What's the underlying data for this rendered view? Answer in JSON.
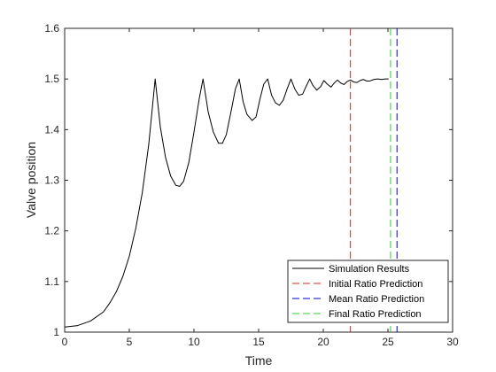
{
  "chart_data": {
    "type": "line",
    "title": "",
    "xlabel": "Time",
    "ylabel": "Valve position",
    "xlim": [
      0,
      30
    ],
    "ylim": [
      1,
      1.6
    ],
    "xticks": [
      0,
      5,
      10,
      15,
      20,
      25,
      30
    ],
    "yticks": [
      1,
      1.1,
      1.2,
      1.3,
      1.4,
      1.5,
      1.6
    ],
    "xtick_labels": [
      "0",
      "5",
      "10",
      "15",
      "20",
      "25",
      "30"
    ],
    "ytick_labels": [
      "1",
      "1.1",
      "1.2",
      "1.3",
      "1.4",
      "1.5",
      "1.6"
    ],
    "grid": false,
    "legend_position": "bottom-right",
    "series": [
      {
        "name": "Simulation Results",
        "style": "solid",
        "color": "#000000",
        "x": [
          0,
          1,
          2,
          3,
          3.5,
          4,
          4.5,
          5,
          5.5,
          6,
          6.5,
          7,
          7.4,
          7.8,
          8.2,
          8.6,
          8.9,
          9.2,
          9.6,
          10,
          10.4,
          10.7,
          11.1,
          11.5,
          11.9,
          12.2,
          12.5,
          12.9,
          13.2,
          13.5,
          13.8,
          14.1,
          14.5,
          14.8,
          15.1,
          15.4,
          15.7,
          16,
          16.3,
          16.6,
          16.9,
          17.2,
          17.5,
          17.8,
          18.1,
          18.4,
          18.7,
          18.95,
          19.2,
          19.5,
          19.8,
          20.05,
          20.3,
          20.6,
          20.85,
          21.1,
          21.35,
          21.6,
          21.85,
          22.1,
          22.35,
          22.6,
          22.85,
          23.1,
          23.35,
          23.6,
          23.9,
          24.2,
          24.5,
          24.8,
          25.05
        ],
        "y": [
          1.01,
          1.013,
          1.022,
          1.04,
          1.058,
          1.08,
          1.11,
          1.15,
          1.205,
          1.275,
          1.37,
          1.5,
          1.405,
          1.345,
          1.308,
          1.29,
          1.288,
          1.298,
          1.335,
          1.395,
          1.46,
          1.5,
          1.435,
          1.395,
          1.373,
          1.373,
          1.39,
          1.44,
          1.48,
          1.5,
          1.455,
          1.43,
          1.418,
          1.425,
          1.46,
          1.49,
          1.5,
          1.468,
          1.453,
          1.448,
          1.458,
          1.48,
          1.5,
          1.48,
          1.468,
          1.47,
          1.487,
          1.5,
          1.487,
          1.478,
          1.485,
          1.497,
          1.49,
          1.484,
          1.492,
          1.498,
          1.492,
          1.489,
          1.495,
          1.498,
          1.494,
          1.493,
          1.497,
          1.499,
          1.496,
          1.496,
          1.499,
          1.5,
          1.499,
          1.5,
          1.5
        ]
      },
      {
        "name": "Initial Ratio Prediction",
        "style": "dashed",
        "color": "#d62728",
        "vertical_x": 22.1
      },
      {
        "name": "Mean Ratio Prediction",
        "style": "dashed",
        "color": "#0000cc",
        "vertical_x": 25.7
      },
      {
        "name": "Final Ratio Prediction",
        "style": "dashed",
        "color": "#2ecc2e",
        "vertical_x": 25.2
      }
    ]
  }
}
